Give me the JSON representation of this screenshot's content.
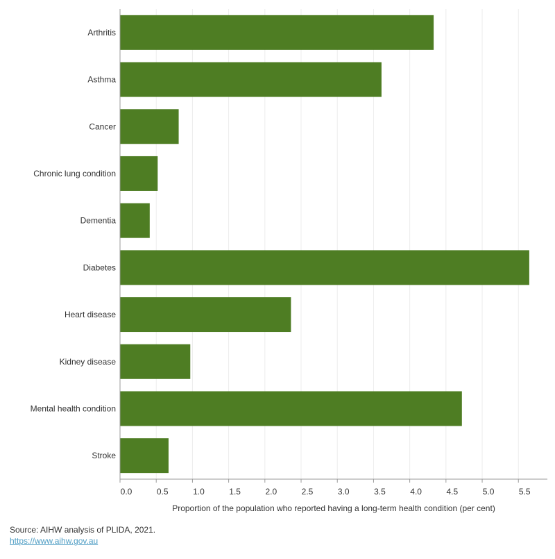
{
  "chart_data": {
    "type": "bar",
    "orientation": "horizontal",
    "categories": [
      "Arthritis",
      "Asthma",
      "Cancer",
      "Chronic lung condition",
      "Dementia",
      "Diabetes",
      "Heart disease",
      "Kidney disease",
      "Mental health condition",
      "Stroke"
    ],
    "values": [
      4.33,
      3.61,
      0.81,
      0.52,
      0.41,
      5.65,
      2.36,
      0.97,
      4.72,
      0.67
    ],
    "xlabel": "Proportion of the population who reported having a long-term health condition (per cent)",
    "ylabel": "",
    "xlim": [
      0,
      5.9
    ],
    "xticks": [
      "0.0",
      "0.5",
      "1.0",
      "1.5",
      "2.0",
      "2.5",
      "3.0",
      "3.5",
      "4.0",
      "4.5",
      "5.0",
      "5.5"
    ],
    "grid": "vertical",
    "bar_color": "#4e7d23"
  },
  "footer": {
    "source": "Source: AIHW analysis of PLIDA, 2021.",
    "link": "https://www.aihw.gov.au"
  }
}
